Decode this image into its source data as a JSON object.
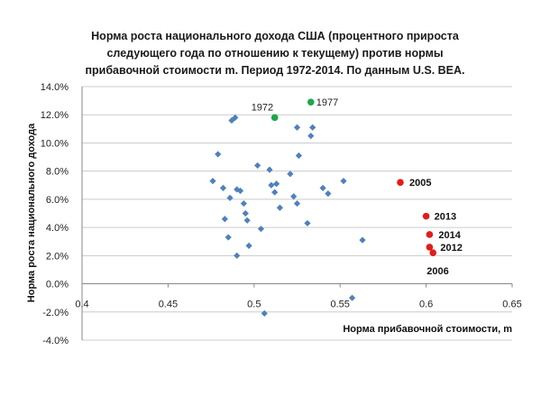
{
  "chart_data": {
    "type": "scatter",
    "title_lines": [
      "Норма роста  национального дохода США  (процентного прироста",
      "следующего года по отношению к текущему) против нормы",
      "прибавочной стоимости m. Период 1972-2014.  По данным U.S. BEA."
    ],
    "xlabel": "Норма прибавочной  стоимости, m",
    "ylabel": "Норма роста национального  дохода",
    "xlim": [
      0.4,
      0.65
    ],
    "ylim": [
      -4.0,
      14.0
    ],
    "x_ticks": [
      "0.4",
      "0.45",
      "0.5",
      "0.55",
      "0.6",
      "0.65"
    ],
    "y_ticks": [
      "-4.0%",
      "-2.0%",
      "0.0%",
      "2.0%",
      "4.0%",
      "6.0%",
      "8.0%",
      "10.0%",
      "12.0%",
      "14.0%"
    ],
    "grid": "horizontal",
    "colors": {
      "base": "#4f81bd",
      "green": "#1fa74b",
      "red": "#e31b1b",
      "grid": "#cccccc",
      "axis": "#888888"
    },
    "points": [
      [
        0.476,
        7.3
      ],
      [
        0.479,
        9.2
      ],
      [
        0.482,
        6.8
      ],
      [
        0.483,
        4.6
      ],
      [
        0.485,
        3.3
      ],
      [
        0.486,
        6.1
      ],
      [
        0.487,
        11.6
      ],
      [
        0.489,
        11.8
      ],
      [
        0.49,
        6.7
      ],
      [
        0.49,
        2.0
      ],
      [
        0.492,
        6.6
      ],
      [
        0.494,
        5.7
      ],
      [
        0.495,
        5.0
      ],
      [
        0.496,
        4.5
      ],
      [
        0.497,
        2.7
      ],
      [
        0.502,
        8.4
      ],
      [
        0.504,
        3.9
      ],
      [
        0.506,
        -2.1
      ],
      [
        0.509,
        8.1
      ],
      [
        0.51,
        7.0
      ],
      [
        0.512,
        6.5
      ],
      [
        0.513,
        7.1
      ],
      [
        0.515,
        5.4
      ],
      [
        0.521,
        7.8
      ],
      [
        0.523,
        6.2
      ],
      [
        0.525,
        11.1
      ],
      [
        0.525,
        5.7
      ],
      [
        0.526,
        9.1
      ],
      [
        0.531,
        4.3
      ],
      [
        0.533,
        10.5
      ],
      [
        0.534,
        11.1
      ],
      [
        0.54,
        6.8
      ],
      [
        0.543,
        6.4
      ],
      [
        0.552,
        7.3
      ],
      [
        0.557,
        -1.0
      ],
      [
        0.563,
        3.1
      ]
    ],
    "highlighted": [
      {
        "label": "1972",
        "x": 0.512,
        "y": 11.8,
        "color": "green",
        "bold": false
      },
      {
        "label": "1977",
        "x": 0.533,
        "y": 12.9,
        "color": "green",
        "bold": false
      },
      {
        "label": "2005",
        "x": 0.585,
        "y": 7.2,
        "color": "red",
        "bold": true
      },
      {
        "label": "2013",
        "x": 0.6,
        "y": 4.8,
        "color": "red",
        "bold": true
      },
      {
        "label": "2014",
        "x": 0.602,
        "y": 3.5,
        "color": "red",
        "bold": true
      },
      {
        "label": "2012",
        "x": 0.602,
        "y": 2.6,
        "color": "red",
        "bold": true
      },
      {
        "label": "2006",
        "x": 0.604,
        "y": 2.2,
        "color": "red",
        "bold": true
      }
    ]
  }
}
